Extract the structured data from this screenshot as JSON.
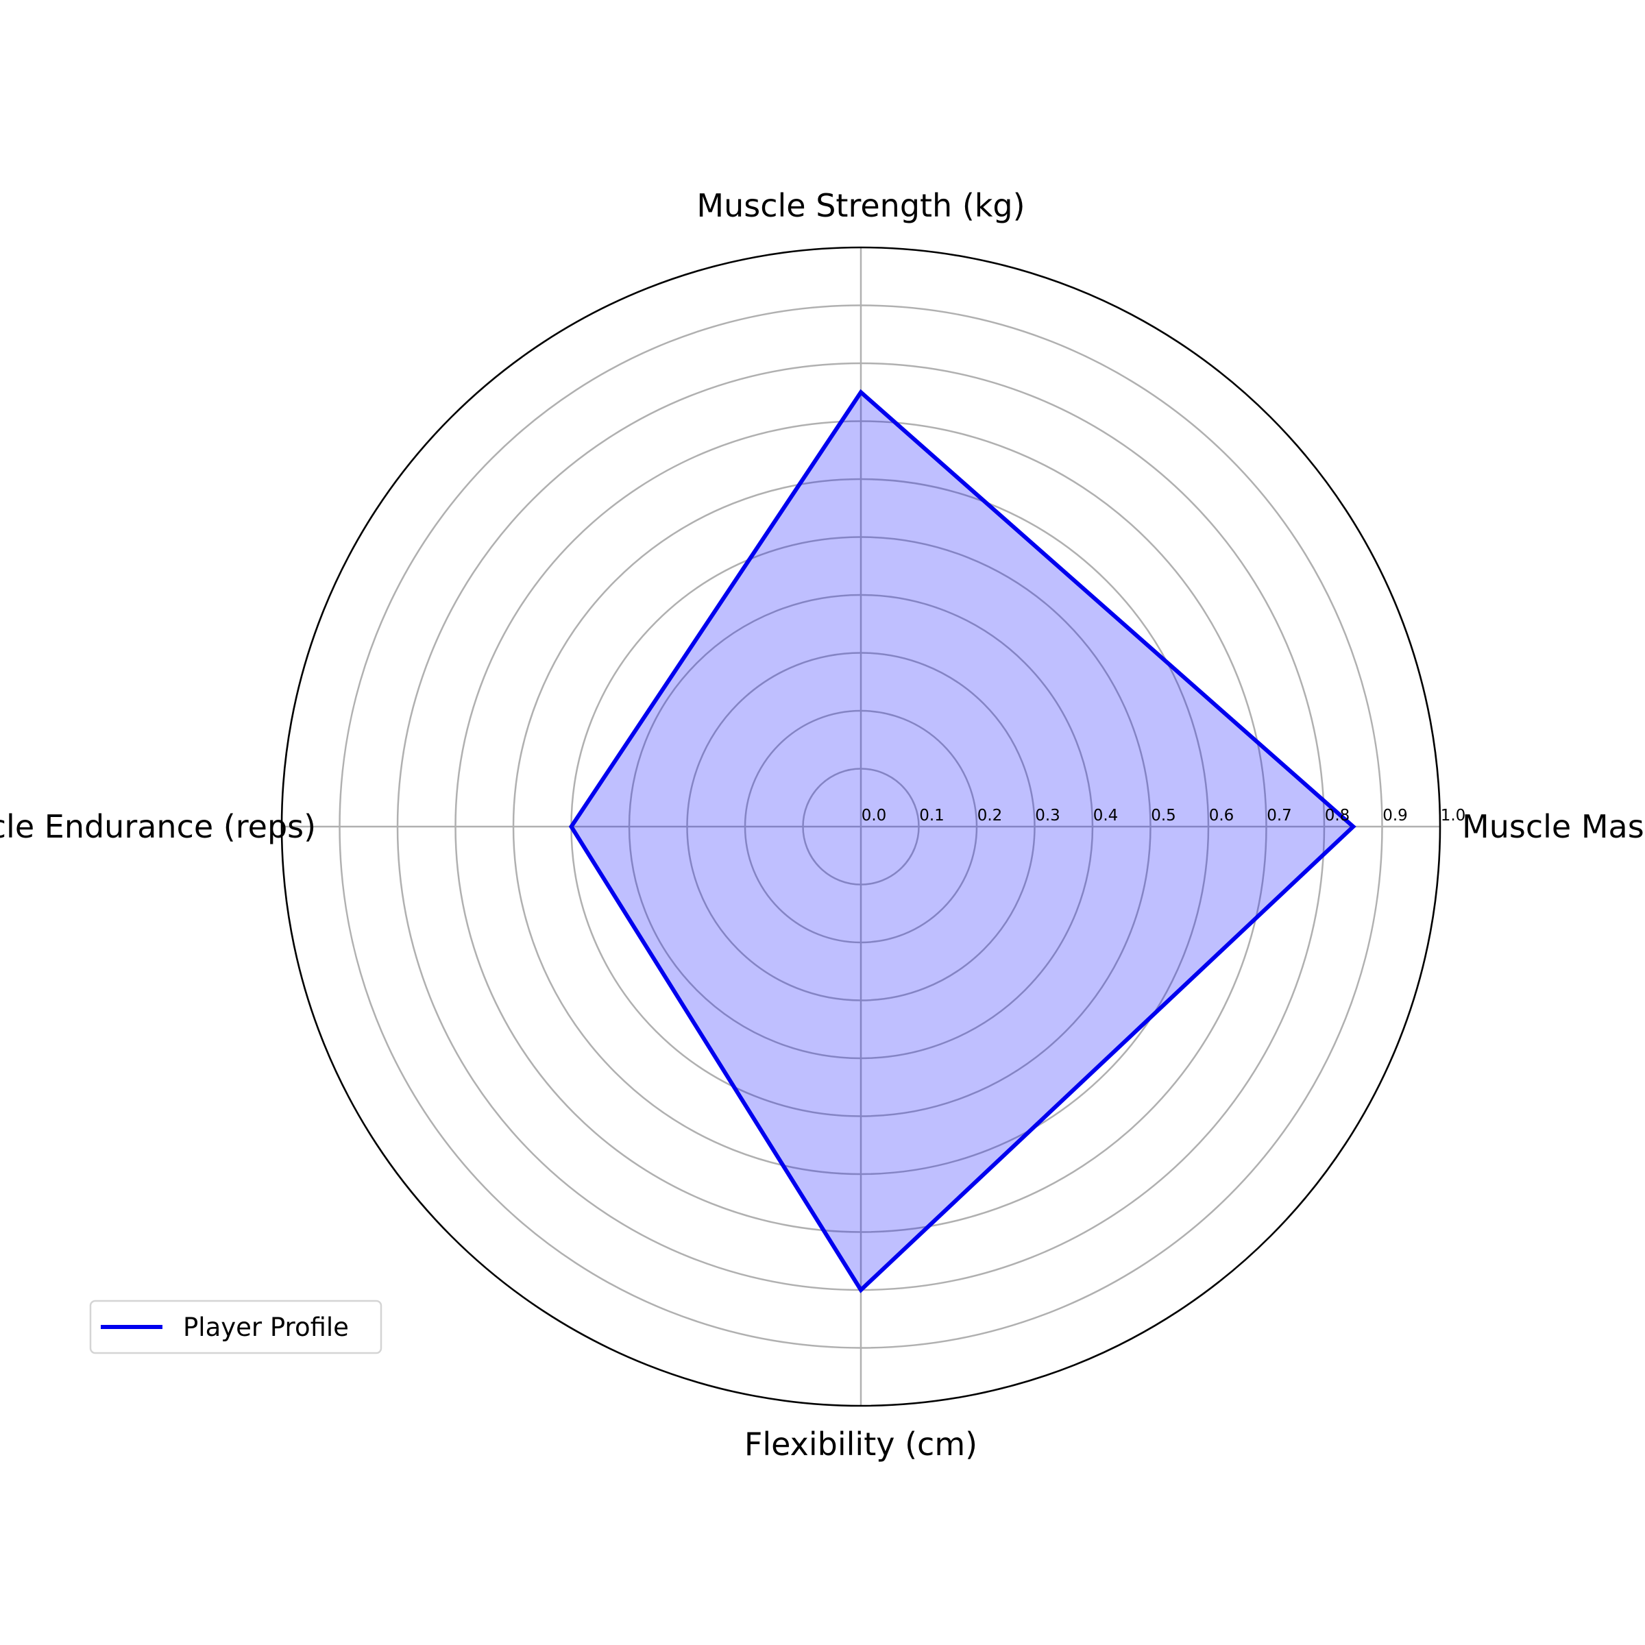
{
  "chart_data": {
    "type": "radar",
    "axes": [
      "Muscle Mass (kg)",
      "Muscle Strength (kg)",
      "Muscle Endurance (reps)",
      "Flexibility (cm)"
    ],
    "series": [
      {
        "name": "Player Profile",
        "values": [
          0.85,
          0.75,
          0.5,
          0.8
        ],
        "color": "#0000ee",
        "fill": "#0000ff",
        "fill_opacity": 0.25
      }
    ],
    "rlim": [
      0,
      1.0
    ],
    "r_ticks": [
      "0.0",
      "0.1",
      "0.2",
      "0.3",
      "0.4",
      "0.5",
      "0.6",
      "0.7",
      "0.8",
      "0.9",
      "1.0"
    ],
    "grid": true,
    "legend_position": "lower-left"
  }
}
